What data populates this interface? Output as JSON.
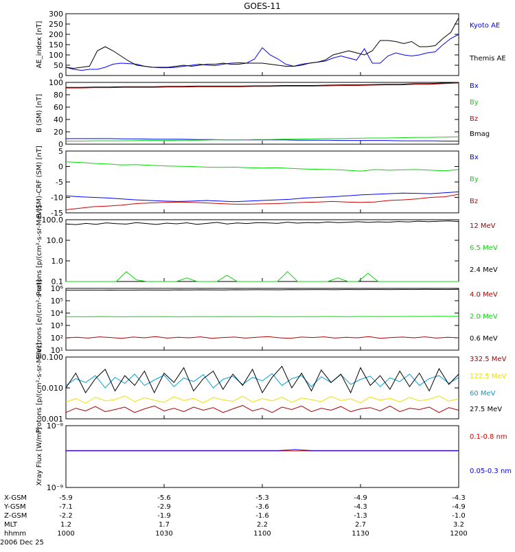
{
  "title": "GOES-11",
  "date_label": "2006 Dec 25",
  "colors": {
    "black": "#000000",
    "blue": "#0000ff",
    "green": "#00dd00",
    "red": "#cc0000",
    "darkred": "#aa0000",
    "cyan": "#00a0d8",
    "yellow": "#f0e000"
  },
  "footer": {
    "rows": [
      {
        "label": "X-GSM",
        "values": [
          "-5.9",
          "-5.6",
          "-5.3",
          "-4.9",
          "-4.3"
        ]
      },
      {
        "label": "Y-GSM",
        "values": [
          "-7.1",
          "-2.9",
          "-3.6",
          "-4.3",
          "-4.9"
        ]
      },
      {
        "label": "Z-GSM",
        "values": [
          "-2.2",
          "-1.9",
          "-1.6",
          "-1.3",
          "-1.0"
        ]
      },
      {
        "label": "MLT",
        "values": [
          "1.2",
          "1.7",
          "2.2",
          "2.7",
          "3.2"
        ]
      },
      {
        "label": "hhmm",
        "values": [
          "1000",
          "1030",
          "1100",
          "1130",
          "1200"
        ]
      }
    ]
  },
  "chart_data": [
    {
      "type": "line",
      "ylabel": "AE_index [nT]",
      "yticks": [
        "300",
        "250",
        "200",
        "150",
        "100",
        "50",
        "0"
      ],
      "ylim": [
        0,
        300
      ],
      "series": [
        {
          "name": "Kyoto AE",
          "color": "blue",
          "values": [
            40,
            30,
            25,
            30,
            30,
            40,
            55,
            60,
            58,
            55,
            45,
            40,
            38,
            38,
            40,
            45,
            50,
            55,
            50,
            48,
            55,
            60,
            62,
            60,
            80,
            135,
            100,
            80,
            55,
            45,
            55,
            60,
            65,
            70,
            85,
            95,
            85,
            75,
            130,
            60,
            60,
            95,
            110,
            100,
            95,
            100,
            110,
            115,
            150,
            180,
            200
          ]
        },
        {
          "name": "Themis AE",
          "color": "black",
          "values": [
            40,
            35,
            40,
            45,
            120,
            140,
            120,
            95,
            70,
            50,
            45,
            40,
            40,
            40,
            45,
            50,
            45,
            50,
            55,
            55,
            60,
            55,
            55,
            60,
            60,
            60,
            55,
            50,
            45,
            45,
            50,
            60,
            65,
            75,
            100,
            110,
            120,
            110,
            100,
            120,
            170,
            170,
            165,
            155,
            165,
            140,
            140,
            145,
            180,
            210,
            280
          ]
        }
      ]
    },
    {
      "type": "line",
      "ylabel": "B (SM) [nT]",
      "yticks": [
        "100",
        "80",
        "60",
        "40",
        "20",
        "0"
      ],
      "ylim": [
        0,
        100
      ],
      "series": [
        {
          "name": "Bx",
          "color": "blue",
          "values": [
            9,
            9,
            9,
            9,
            8.5,
            8.5,
            8,
            8,
            8,
            7.5,
            7.5,
            7,
            7,
            7,
            7,
            7,
            6.5,
            6.5,
            6.5,
            6,
            6,
            6,
            6,
            5.5,
            5.5,
            5.5,
            5,
            5
          ]
        },
        {
          "name": "By",
          "color": "green",
          "values": [
            5,
            5,
            5.5,
            5.5,
            5.5,
            6,
            6,
            6,
            6.5,
            6.5,
            7,
            7,
            7,
            7.5,
            7.5,
            8,
            8,
            8.5,
            9,
            9,
            9.5,
            10,
            10,
            10.5,
            11,
            11,
            11.5,
            12
          ]
        },
        {
          "name": "Bz",
          "color": "red",
          "values": [
            91,
            91,
            91.5,
            91.5,
            92,
            92,
            92,
            92.5,
            92.5,
            93,
            93,
            93,
            93,
            93.5,
            93.5,
            94,
            94,
            94,
            94.5,
            95,
            95,
            95.5,
            96,
            96,
            97,
            97,
            98,
            99
          ]
        },
        {
          "name": "Bmag",
          "color": "black",
          "values": [
            92,
            92,
            92.5,
            92.5,
            93,
            93,
            93,
            93.5,
            93.5,
            94,
            94,
            94,
            94,
            94.5,
            94.5,
            95,
            95,
            95,
            95.5,
            96,
            96,
            96.5,
            97,
            97,
            98,
            98,
            99,
            100
          ]
        }
      ]
    },
    {
      "type": "line",
      "ylabel": "B (SM)-CRF (SM) [nT]",
      "yticks": [
        "5",
        "0",
        "-5",
        "-10",
        "-15"
      ],
      "ylim": [
        -15,
        5
      ],
      "series": [
        {
          "name": "Bx",
          "color": "blue",
          "values": [
            -9.5,
            -9.8,
            -10,
            -10.2,
            -10.5,
            -10.8,
            -11,
            -11.2,
            -11.3,
            -11.2,
            -11,
            -11.2,
            -11.4,
            -11.2,
            -11,
            -10.8,
            -10.6,
            -10.2,
            -10,
            -9.8,
            -9.5,
            -9.2,
            -9,
            -8.8,
            -8.6,
            -8.7,
            -8.8,
            -8.5,
            -8.2
          ]
        },
        {
          "name": "By",
          "color": "green",
          "values": [
            1.5,
            1.3,
            1,
            0.8,
            0.5,
            0.6,
            0.4,
            0.2,
            0.1,
            0,
            -0.2,
            -0.3,
            -0.2,
            -0.4,
            -0.5,
            -0.4,
            -0.6,
            -0.8,
            -0.9,
            -1,
            -1.2,
            -1.5,
            -1,
            -1.2,
            -1.1,
            -1,
            -1.2,
            -1.4,
            -1
          ]
        },
        {
          "name": "Bz",
          "color": "red",
          "values": [
            -14,
            -13.5,
            -13,
            -12.8,
            -12.5,
            -12,
            -11.8,
            -11.6,
            -11.5,
            -11.6,
            -11.8,
            -12,
            -12.2,
            -12.2,
            -12.1,
            -12,
            -11.8,
            -11.6,
            -11.5,
            -11.3,
            -11.5,
            -11.6,
            -11.5,
            -11,
            -10.8,
            -10.5,
            -10,
            -9.8,
            -9
          ]
        }
      ]
    },
    {
      "type": "line",
      "ylabel": "Protons [p/(cm²-s-sr-MeV)]",
      "scale": "log",
      "yticks": [
        "100.0",
        "10.0",
        "1.0",
        "0.1"
      ],
      "ylim": [
        0.1,
        100
      ],
      "series": [
        {
          "name": "12 MeV",
          "color": "darkred",
          "values": []
        },
        {
          "name": "6.5 MeV",
          "color": "green",
          "values": [
            0.1,
            0.1,
            0.1,
            0.1,
            0.1,
            0.1,
            0.3,
            0.12,
            0.1,
            0.1,
            0.1,
            0.1,
            0.15,
            0.1,
            0.1,
            0.1,
            0.2,
            0.1,
            0.1,
            0.1,
            0.1,
            0.1,
            0.3,
            0.1,
            0.1,
            0.1,
            0.1,
            0.15,
            0.1,
            0.1,
            0.25,
            0.1,
            0.1,
            0.1,
            0.1,
            0.1,
            0.1,
            0.1,
            0.1,
            0.1
          ]
        },
        {
          "name": "2.4 MeV",
          "color": "black",
          "values": [
            62,
            58,
            66,
            60,
            70,
            64,
            61,
            72,
            65,
            59,
            68,
            63,
            71,
            60,
            66,
            74,
            62,
            69,
            65,
            72,
            70,
            66,
            76,
            68,
            73,
            70,
            78,
            72,
            75,
            80,
            74,
            79,
            76,
            82,
            78,
            85,
            80,
            84,
            88,
            82
          ]
        }
      ]
    },
    {
      "type": "line",
      "ylabel": "Electrons [e/(cm²-s-sr)]",
      "scale": "log",
      "yticks": [
        "10⁶",
        "10⁵",
        "10⁴",
        "10³",
        "10²",
        "10¹"
      ],
      "ylim": [
        10,
        1000000
      ],
      "series": [
        {
          "name": "4.0 MeV",
          "color": "darkred",
          "values": [
            100,
            110,
            95,
            120,
            105,
            90,
            115,
            100,
            125,
            95,
            110,
            100,
            120,
            90,
            105,
            115,
            95,
            110,
            125,
            100,
            90,
            115,
            105,
            120,
            95,
            110,
            100,
            125,
            90,
            105,
            115,
            100,
            120,
            95,
            110,
            100
          ]
        },
        {
          "name": "2.0 MeV",
          "color": "green",
          "values": [
            5000,
            5100,
            5000,
            5200,
            5100,
            5000,
            5050,
            5150,
            5100,
            5200,
            5000,
            5100,
            5150,
            5100,
            5200,
            5100,
            5050,
            5150,
            5200,
            5100,
            5100,
            5200,
            5150,
            5300,
            5200,
            5100,
            5250,
            5300,
            5200,
            5250,
            5300,
            5350,
            5300,
            5400,
            5350,
            5400
          ]
        },
        {
          "name": "0.6 MeV",
          "color": "black",
          "values": [
            700000,
            710000,
            720000,
            700000,
            730000,
            710000,
            720000,
            740000,
            730000,
            720000,
            750000,
            740000,
            760000,
            750000,
            740000,
            770000,
            760000,
            780000,
            770000,
            760000,
            790000,
            780000,
            800000,
            790000,
            780000,
            810000,
            800000,
            820000,
            810000,
            800000,
            830000,
            820000,
            840000,
            830000,
            820000,
            850000
          ]
        }
      ]
    },
    {
      "type": "line",
      "ylabel": "Protons [p/(cm²-s-sr-MeV)]",
      "scale": "log",
      "yticks": [
        "0.100",
        "0.010",
        "0.001"
      ],
      "ylim": [
        0.001,
        0.1
      ],
      "series": [
        {
          "name": "332.5 MeV",
          "color": "darkred",
          "values": [
            0.0016,
            0.0022,
            0.0018,
            0.0025,
            0.0017,
            0.002,
            0.0024,
            0.0016,
            0.0021,
            0.0026,
            0.0018,
            0.0022,
            0.0017,
            0.0024,
            0.0019,
            0.0023,
            0.0016,
            0.0021,
            0.0027,
            0.0018,
            0.0022,
            0.0016,
            0.0024,
            0.002,
            0.0026,
            0.0017,
            0.0022,
            0.0019,
            0.0025,
            0.0017,
            0.0021,
            0.0023,
            0.0018,
            0.0026,
            0.0017,
            0.0022,
            0.002,
            0.0024,
            0.0016,
            0.0023,
            0.0019
          ]
        },
        {
          "name": "122.5 MeV",
          "color": "yellow",
          "values": [
            0.0035,
            0.0045,
            0.0032,
            0.005,
            0.0038,
            0.0042,
            0.0055,
            0.0036,
            0.0048,
            0.004,
            0.0034,
            0.0052,
            0.0039,
            0.0046,
            0.0033,
            0.0049,
            0.0041,
            0.0037,
            0.0054,
            0.0035,
            0.0045,
            0.0038,
            0.005,
            0.0034,
            0.0047,
            0.0042,
            0.0036,
            0.0053,
            0.0039,
            0.0044,
            0.0033,
            0.0051,
            0.004,
            0.0046,
            0.0035,
            0.0049,
            0.0038,
            0.0043,
            0.0055,
            0.0037,
            0.0045
          ]
        },
        {
          "name": "60 MeV",
          "color": "cyan",
          "values": [
            0.012,
            0.02,
            0.015,
            0.025,
            0.01,
            0.022,
            0.014,
            0.028,
            0.012,
            0.018,
            0.026,
            0.011,
            0.021,
            0.016,
            0.027,
            0.01,
            0.019,
            0.024,
            0.013,
            0.022,
            0.017,
            0.029,
            0.012,
            0.02,
            0.025,
            0.011,
            0.023,
            0.015,
            0.027,
            0.013,
            0.019,
            0.024,
            0.011,
            0.021,
            0.016,
            0.028,
            0.012,
            0.02,
            0.025,
            0.014,
            0.022
          ]
        },
        {
          "name": "27.5 MeV",
          "color": "black",
          "values": [
            0.01,
            0.03,
            0.007,
            0.02,
            0.04,
            0.008,
            0.025,
            0.012,
            0.035,
            0.007,
            0.03,
            0.015,
            0.045,
            0.008,
            0.02,
            0.035,
            0.009,
            0.028,
            0.012,
            0.04,
            0.007,
            0.022,
            0.05,
            0.01,
            0.03,
            0.008,
            0.038,
            0.015,
            0.028,
            0.007,
            0.045,
            0.012,
            0.025,
            0.009,
            0.035,
            0.011,
            0.03,
            0.008,
            0.042,
            0.013,
            0.028
          ]
        }
      ]
    },
    {
      "type": "line",
      "ylabel": "Xray Flux [W/m²]",
      "scale": "log",
      "yticks": [
        "10⁻⁸",
        "10⁻⁹"
      ],
      "ylim": [
        1e-09,
        1e-08
      ],
      "series": [
        {
          "name": "0.1-0.8 nm",
          "color": "red",
          "values": [
            3.9e-09,
            3.9e-09,
            3.9e-09,
            3.9e-09,
            3.9e-09,
            3.9e-09,
            3.9e-09,
            3.9e-09,
            3.9e-09,
            3.9e-09,
            3.9e-09,
            3.9e-09,
            3.9e-09,
            3.9e-09,
            3.9e-09,
            3.9e-09,
            3.9e-09,
            3.9e-09,
            3.9e-09,
            3.9e-09,
            3.9e-09,
            3.9e-09,
            3.9e-09,
            3.9e-09,
            3.9e-09
          ]
        },
        {
          "name": "0.05-0.3 nm",
          "color": "blue",
          "values": [
            3.95e-09,
            3.95e-09,
            3.95e-09,
            3.95e-09,
            3.95e-09,
            3.95e-09,
            3.95e-09,
            3.95e-09,
            3.95e-09,
            3.95e-09,
            3.95e-09,
            3.95e-09,
            3.95e-09,
            3.95e-09,
            4.1e-09,
            3.95e-09,
            3.95e-09,
            3.95e-09,
            3.95e-09,
            3.95e-09,
            3.95e-09,
            3.95e-09,
            3.95e-09,
            3.95e-09,
            3.95e-09
          ]
        }
      ]
    }
  ]
}
